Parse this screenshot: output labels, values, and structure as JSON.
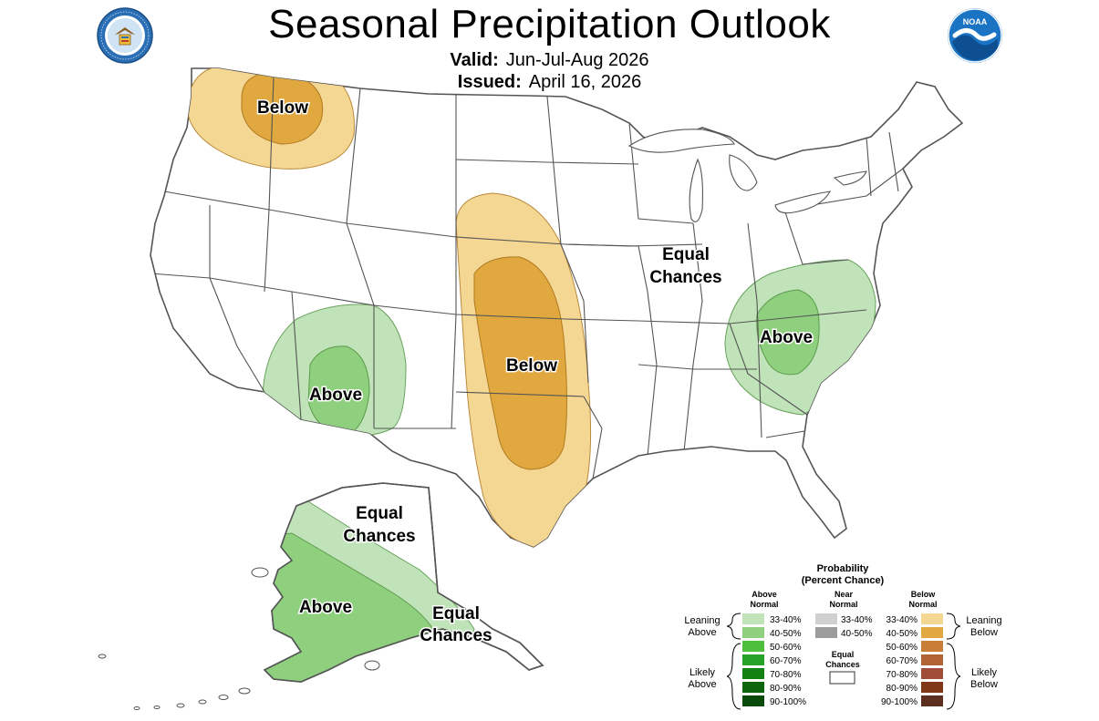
{
  "header": {
    "title": "Seasonal Precipitation Outlook",
    "valid_label": "Valid:",
    "valid_value": "Jun-Jul-Aug 2026",
    "issued_label": "Issued:",
    "issued_value": "April 16, 2026",
    "noaa_logo_text": "NOAA"
  },
  "map_labels": {
    "nw_below": "Below",
    "plains_below": "Below",
    "sw_above": "Above",
    "se_above": "Above",
    "conus_equal_1": "Equal",
    "conus_equal_2": "Chances",
    "ak_equal_1": "Equal",
    "ak_equal_2": "Chances",
    "ak_above": "Above",
    "ak_se_equal_1": "Equal",
    "ak_se_equal_2": "Chances"
  },
  "legend": {
    "title_1": "Probability",
    "title_2": "(Percent Chance)",
    "above_head_1": "Above",
    "above_head_2": "Normal",
    "near_head_1": "Near",
    "near_head_2": "Normal",
    "below_head_1": "Below",
    "below_head_2": "Normal",
    "equal_1": "Equal",
    "equal_2": "Chances",
    "leaning_above_1": "Leaning",
    "leaning_above_2": "Above",
    "likely_above_1": "Likely",
    "likely_above_2": "Above",
    "leaning_below_1": "Leaning",
    "leaning_below_2": "Below",
    "likely_below_1": "Likely",
    "likely_below_2": "Below",
    "above": [
      {
        "label": "33-40%",
        "color": "#c1e3b9"
      },
      {
        "label": "40-50%",
        "color": "#8fd07e"
      },
      {
        "label": "50-60%",
        "color": "#4dbf3c"
      },
      {
        "label": "60-70%",
        "color": "#27a327"
      },
      {
        "label": "70-80%",
        "color": "#118211"
      },
      {
        "label": "80-90%",
        "color": "#0d640d"
      },
      {
        "label": "90-100%",
        "color": "#0a4a0a"
      }
    ],
    "near": [
      {
        "label": "33-40%",
        "color": "#d0d0d0"
      },
      {
        "label": "40-50%",
        "color": "#9c9c9c"
      }
    ],
    "below": [
      {
        "label": "33-40%",
        "color": "#f5d794"
      },
      {
        "label": "40-50%",
        "color": "#e0a83e"
      },
      {
        "label": "50-60%",
        "color": "#c87e36"
      },
      {
        "label": "60-70%",
        "color": "#b26336"
      },
      {
        "label": "70-80%",
        "color": "#a04d3a"
      },
      {
        "label": "80-90%",
        "color": "#7f3718"
      },
      {
        "label": "90-100%",
        "color": "#5b2e1f"
      }
    ]
  },
  "colors": {
    "state_line": "#555555",
    "above_33": "#c1e3b9",
    "above_40": "#8fd07e",
    "below_33": "#f5d794",
    "below_40": "#e0a83e"
  }
}
